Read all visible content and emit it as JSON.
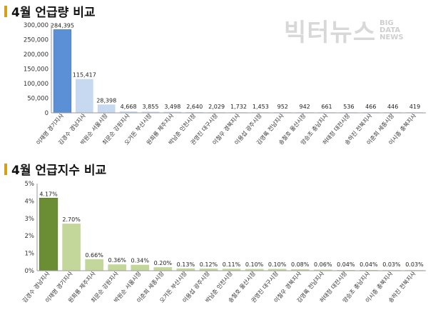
{
  "titles": {
    "top": "4월 언급량 비교",
    "bottom": "4월 언급지수 비교"
  },
  "watermark": {
    "main": "빅터뉴스",
    "sub_lines": [
      "BIG",
      "DATA",
      "NEWS"
    ]
  },
  "colors": {
    "title_bar": "#d4a017",
    "top_highlight": "#5b8fd6",
    "top_bar": "#c6d9f0",
    "bottom_highlight": "#6b8e35",
    "bottom_bar": "#c4d79b"
  },
  "chart_data": [
    {
      "type": "bar",
      "title": "4월 언급량 비교",
      "categories": [
        "이재명 경기지사",
        "김경수 경남지사",
        "박원순 서울시장",
        "최문순 강원지사",
        "오거돈 부산시장",
        "원희룡 제주지사",
        "박남춘 인천시장",
        "권영진 대구시장",
        "이철우 경북지사",
        "이용섭 광주시장",
        "김영록 전남지사",
        "송철호 울산시장",
        "양승조 충남지사",
        "허태정 대전시장",
        "송하진 전북지사",
        "이춘희 세종시장",
        "이시종 충북지사"
      ],
      "values": [
        284395,
        115417,
        28398,
        4668,
        3855,
        3498,
        2640,
        2029,
        1732,
        1453,
        952,
        942,
        661,
        536,
        466,
        446,
        419
      ],
      "value_labels": [
        "284,395",
        "115,417",
        "28,398",
        "4,668",
        "3,855",
        "3,498",
        "2,640",
        "2,029",
        "1,732",
        "1,453",
        "952",
        "942",
        "661",
        "536",
        "466",
        "446",
        "419"
      ],
      "ylim": [
        0,
        300000
      ],
      "yticks": [
        "0",
        "50,000",
        "100,000",
        "150,000",
        "200,000",
        "250,000",
        "300,000"
      ],
      "grid": false
    },
    {
      "type": "bar",
      "title": "4월 언급지수 비교",
      "categories": [
        "김경수 경남지사",
        "이재명 경기지사",
        "원희룡 제주지사",
        "최문순 강원지사",
        "박원순 서울시장",
        "이춘희 세종시장",
        "오거돈 부산시장",
        "이용섭 광주시장",
        "박남춘 인천시장",
        "송철호 울산시장",
        "권영진 대구시장",
        "이철우 경북지사",
        "김영록 전남지사",
        "허태정 대전시장",
        "양승조 충남지사",
        "이시종 충북지사",
        "송하진 전북지사"
      ],
      "values": [
        4.17,
        2.7,
        0.66,
        0.36,
        0.34,
        0.2,
        0.13,
        0.12,
        0.11,
        0.1,
        0.1,
        0.08,
        0.06,
        0.04,
        0.04,
        0.03,
        0.03
      ],
      "value_labels": [
        "4.17%",
        "2.70%",
        "0.66%",
        "0.36%",
        "0.34%",
        "0.20%",
        "0.13%",
        "0.12%",
        "0.11%",
        "0.10%",
        "0.10%",
        "0.08%",
        "0.06%",
        "0.04%",
        "0.04%",
        "0.03%",
        "0.03%"
      ],
      "ylim": [
        0,
        5
      ],
      "yticks": [
        "0%",
        "1%",
        "2%",
        "3%",
        "4%",
        "5%"
      ],
      "grid": false
    }
  ]
}
